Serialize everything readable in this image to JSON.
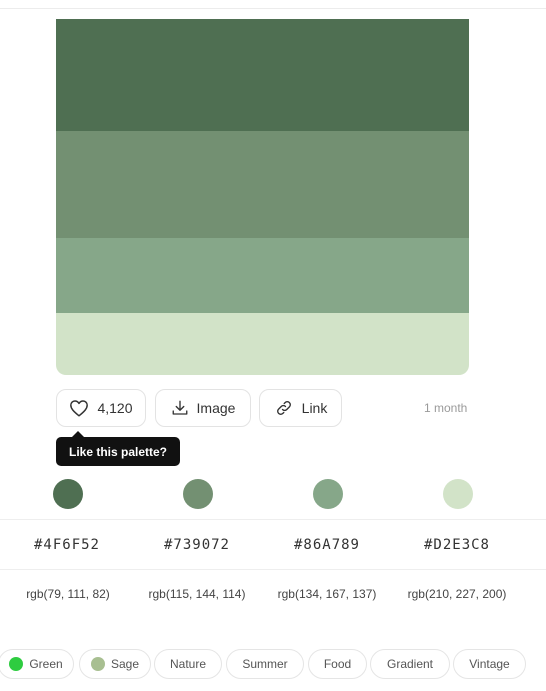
{
  "palette": {
    "colors": [
      "#4F6F52",
      "#739072",
      "#86A789",
      "#D2E3C8"
    ],
    "hex_labels": [
      "#4F6F52",
      "#739072",
      "#86A789",
      "#D2E3C8"
    ],
    "rgb_labels": [
      "rgb(79, 111, 82)",
      "rgb(115, 144, 114)",
      "rgb(134, 167, 137)",
      "rgb(210, 227, 200)"
    ]
  },
  "actions": {
    "like_count": "4,120",
    "like_icon": "heart-icon",
    "image_label": "Image",
    "image_icon": "download-icon",
    "link_label": "Link",
    "link_icon": "link-icon",
    "age": "1 month"
  },
  "tooltip": {
    "text": "Like this palette?"
  },
  "tags": [
    {
      "label": "Green",
      "dot_color": "#2ecc40"
    },
    {
      "label": "Sage",
      "dot_color": "#a8bf91"
    },
    {
      "label": "Nature"
    },
    {
      "label": "Summer"
    },
    {
      "label": "Food"
    },
    {
      "label": "Gradient"
    },
    {
      "label": "Vintage"
    }
  ]
}
